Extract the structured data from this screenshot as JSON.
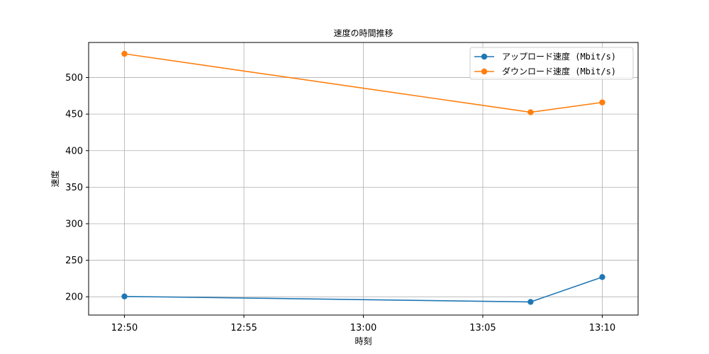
{
  "chart_data": {
    "type": "line",
    "title": "速度の時間推移",
    "xlabel": "時刻",
    "ylabel": "速度",
    "x_ticks": [
      "12:50",
      "12:55",
      "13:00",
      "13:05",
      "13:10"
    ],
    "x_tick_minutes": [
      0,
      5,
      10,
      15,
      20
    ],
    "y_ticks": [
      200,
      250,
      300,
      350,
      400,
      450,
      500
    ],
    "xlim": [
      "12:48:30",
      "13:11:30"
    ],
    "ylim": [
      175,
      548
    ],
    "grid": true,
    "legend_position": "top-right",
    "x": [
      "12:50",
      "13:07",
      "13:10"
    ],
    "series": [
      {
        "name": "アップロード速度 (Mbit/s)",
        "color": "#1f77b4",
        "values": [
          200.5,
          193,
          227
        ]
      },
      {
        "name": "ダウンロード速度 (Mbit/s)",
        "color": "#ff7f0e",
        "values": [
          532.5,
          452.5,
          466
        ]
      }
    ]
  }
}
